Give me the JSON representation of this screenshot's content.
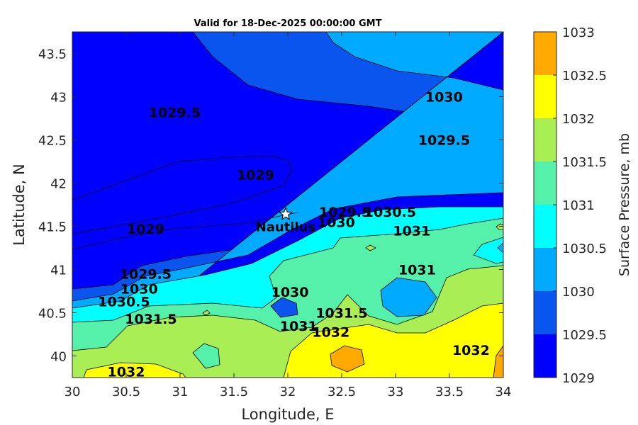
{
  "chart_data": {
    "type": "contour",
    "title": "Valid for 18-Dec-2025 00:00:00 GMT",
    "xlabel": "Longitude, E",
    "ylabel": "Latitude, N",
    "xlim": [
      30,
      34
    ],
    "ylim": [
      39.75,
      43.75
    ],
    "xticks": [
      30,
      30.5,
      31,
      31.5,
      32,
      32.5,
      33,
      33.5,
      34
    ],
    "xtick_labels": [
      "30",
      "30.5",
      "31",
      "31.5",
      "32",
      "32.5",
      "33",
      "33.5",
      "34"
    ],
    "yticks": [
      40,
      40.5,
      41,
      41.5,
      42,
      42.5,
      43,
      43.5
    ],
    "ytick_labels": [
      "40",
      "40.5",
      "41",
      "41.5",
      "42",
      "42.5",
      "43",
      "43.5"
    ],
    "grid": false,
    "colorbar": {
      "label": "Surface Pressure, mb",
      "levels": [
        1029,
        1029.5,
        1030,
        1030.5,
        1031,
        1031.5,
        1032,
        1032.5,
        1033
      ],
      "level_labels": [
        "1029",
        "1029.5",
        "1030",
        "1030.5",
        "1031",
        "1031.5",
        "1032",
        "1032.5",
        "1033"
      ],
      "colors": [
        "#0000ff",
        "#0a55ee",
        "#00aaff",
        "#00ffff",
        "#55f0aa",
        "#aaee55",
        "#ffff00",
        "#ffaa00",
        "#ff5500"
      ]
    },
    "contour_labels": [
      {
        "text": "1030",
        "lon": 33.45,
        "lat": 43.0
      },
      {
        "text": "1029.5",
        "lon": 30.95,
        "lat": 42.82
      },
      {
        "text": "1029.5",
        "lon": 33.45,
        "lat": 42.5
      },
      {
        "text": "1029",
        "lon": 31.7,
        "lat": 42.1
      },
      {
        "text": "1029",
        "lon": 30.68,
        "lat": 41.47
      },
      {
        "text": "1029.5",
        "lon": 32.53,
        "lat": 41.67
      },
      {
        "text": "1030",
        "lon": 32.45,
        "lat": 41.55
      },
      {
        "text": "1030.5",
        "lon": 32.95,
        "lat": 41.67
      },
      {
        "text": "1031",
        "lon": 33.15,
        "lat": 41.45
      },
      {
        "text": "1031",
        "lon": 33.2,
        "lat": 41.0
      },
      {
        "text": "1029.5",
        "lon": 30.68,
        "lat": 40.95
      },
      {
        "text": "1030",
        "lon": 30.62,
        "lat": 40.78
      },
      {
        "text": "1030.5",
        "lon": 30.48,
        "lat": 40.63
      },
      {
        "text": "1031.5",
        "lon": 30.73,
        "lat": 40.43
      },
      {
        "text": "1030",
        "lon": 32.02,
        "lat": 40.74
      },
      {
        "text": "1031",
        "lon": 32.1,
        "lat": 40.35
      },
      {
        "text": "1031.5",
        "lon": 32.5,
        "lat": 40.5
      },
      {
        "text": "1032",
        "lon": 32.4,
        "lat": 40.28
      },
      {
        "text": "1032",
        "lon": 30.5,
        "lat": 39.82
      },
      {
        "text": "1032",
        "lon": 33.7,
        "lat": 40.07
      }
    ],
    "annotations": [
      {
        "text": "Nautilus",
        "marker": "star",
        "lon": 31.98,
        "lat": 41.64
      }
    ]
  }
}
